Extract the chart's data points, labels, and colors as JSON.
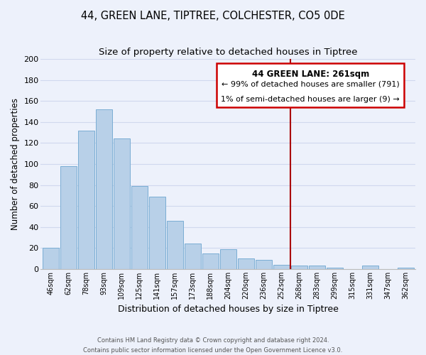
{
  "title": "44, GREEN LANE, TIPTREE, COLCHESTER, CO5 0DE",
  "subtitle": "Size of property relative to detached houses in Tiptree",
  "xlabel": "Distribution of detached houses by size in Tiptree",
  "ylabel": "Number of detached properties",
  "bar_labels": [
    "46sqm",
    "62sqm",
    "78sqm",
    "93sqm",
    "109sqm",
    "125sqm",
    "141sqm",
    "157sqm",
    "173sqm",
    "188sqm",
    "204sqm",
    "220sqm",
    "236sqm",
    "252sqm",
    "268sqm",
    "283sqm",
    "299sqm",
    "315sqm",
    "331sqm",
    "347sqm",
    "362sqm"
  ],
  "bar_values": [
    20,
    98,
    132,
    152,
    124,
    79,
    69,
    46,
    24,
    15,
    19,
    10,
    9,
    4,
    3,
    3,
    1,
    0,
    3,
    0,
    1
  ],
  "bar_color": "#b8d0e8",
  "bar_edge_color": "#7aadd4",
  "ylim": [
    0,
    200
  ],
  "yticks": [
    0,
    20,
    40,
    60,
    80,
    100,
    120,
    140,
    160,
    180,
    200
  ],
  "vline_color": "#aa0000",
  "annotation_title": "44 GREEN LANE: 261sqm",
  "annotation_line1": "← 99% of detached houses are smaller (791)",
  "annotation_line2": "1% of semi-detached houses are larger (9) →",
  "annotation_box_color": "#ffffff",
  "annotation_box_edge": "#cc0000",
  "footer_line1": "Contains HM Land Registry data © Crown copyright and database right 2024.",
  "footer_line2": "Contains public sector information licensed under the Open Government Licence v3.0.",
  "bg_color": "#edf1fb",
  "grid_color": "#d0d8ee",
  "title_fontsize": 10.5,
  "subtitle_fontsize": 9.5
}
